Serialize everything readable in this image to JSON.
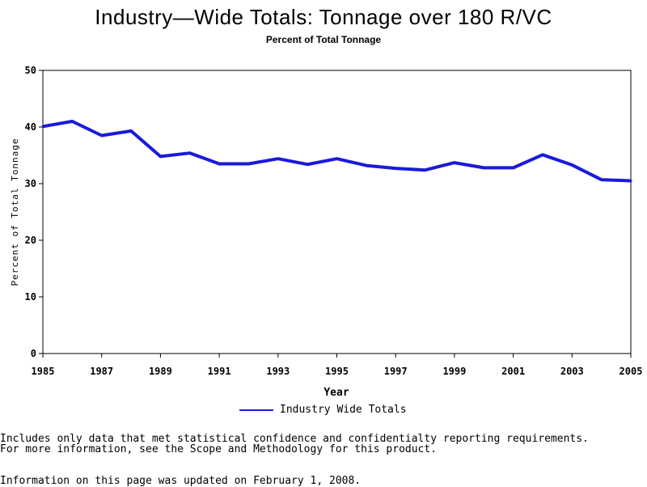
{
  "chart_data": {
    "type": "line",
    "title": "Industry—Wide Totals: Tonnage over 180 R/VC",
    "subtitle": "Percent of Total Tonnage",
    "xlabel": "Year",
    "ylabel": "Percent of Total Tonnage",
    "xlim": [
      1985,
      2005
    ],
    "ylim": [
      0,
      50
    ],
    "xticks": [
      "1985",
      "1987",
      "1989",
      "1991",
      "1993",
      "1995",
      "1997",
      "1999",
      "2001",
      "2003",
      "2005"
    ],
    "yticks": [
      "0",
      "10",
      "20",
      "30",
      "40",
      "50"
    ],
    "grid": false,
    "legend_position": "bottom-center",
    "series": [
      {
        "name": "Industry Wide Totals",
        "color": "#1a1adb",
        "x": [
          1985,
          1986,
          1987,
          1988,
          1989,
          1990,
          1991,
          1992,
          1993,
          1994,
          1995,
          1996,
          1997,
          1998,
          1999,
          2000,
          2001,
          2002,
          2003,
          2004,
          2005
        ],
        "values": [
          40.1,
          41.0,
          38.5,
          39.3,
          34.8,
          35.4,
          33.5,
          33.5,
          34.4,
          33.4,
          34.4,
          33.2,
          32.7,
          32.4,
          33.7,
          32.8,
          32.8,
          35.1,
          33.3,
          30.7,
          30.5
        ]
      }
    ]
  },
  "notes": {
    "line1": "Includes only data that met statistical confidence and confidentialty reporting requirements.",
    "line2": "For more information, see the Scope and Methodology for this product.",
    "line3": "Information on this page was updated on February 1, 2008."
  }
}
